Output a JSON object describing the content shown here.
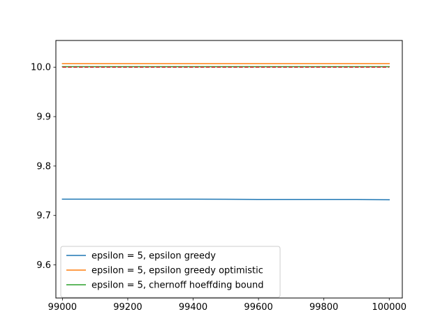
{
  "chart_data": {
    "type": "line",
    "title": "",
    "xlabel": "",
    "ylabel": "",
    "xlim": [
      98980,
      100040
    ],
    "ylim": [
      9.533,
      10.054
    ],
    "xticks": [
      99000,
      99200,
      99400,
      99600,
      99800,
      100000
    ],
    "xtick_labels": [
      "99000",
      "99200",
      "99400",
      "99600",
      "99800",
      "100000"
    ],
    "yticks": [
      9.6,
      9.7,
      9.8,
      9.9,
      10.0
    ],
    "ytick_labels": [
      "9.6",
      "9.7",
      "9.8",
      "9.9",
      "10.0"
    ],
    "grid": false,
    "legend_position": "lower-left",
    "series": [
      {
        "name": "epsilon = 5, epsilon greedy",
        "color": "#1f77b4",
        "style": "solid",
        "x": [
          99000,
          99100,
          99200,
          99300,
          99400,
          99500,
          99600,
          99700,
          99800,
          99900,
          100000
        ],
        "values": [
          9.733,
          9.733,
          9.733,
          9.733,
          9.733,
          9.7328,
          9.7325,
          9.7325,
          9.7325,
          9.7325,
          9.7318
        ]
      },
      {
        "name": "epsilon = 5, epsilon greedy optimistic",
        "color": "#ff7f0e",
        "style": "solid",
        "x": [
          99000,
          99200,
          99400,
          99600,
          99800,
          100000
        ],
        "values": [
          10.007,
          10.007,
          10.007,
          10.007,
          10.007,
          10.007
        ]
      },
      {
        "name": "epsilon = 5, chernoff hoeffding bound",
        "color": "#2ca02c",
        "style": "solid",
        "x": [
          99000,
          99200,
          99400,
          99600,
          99800,
          100000
        ],
        "values": [
          10.001,
          10.001,
          10.001,
          10.001,
          10.001,
          10.001
        ]
      }
    ],
    "reference_lines": [
      {
        "y": 10.0,
        "color": "#d62728",
        "style": "dashed"
      }
    ]
  }
}
